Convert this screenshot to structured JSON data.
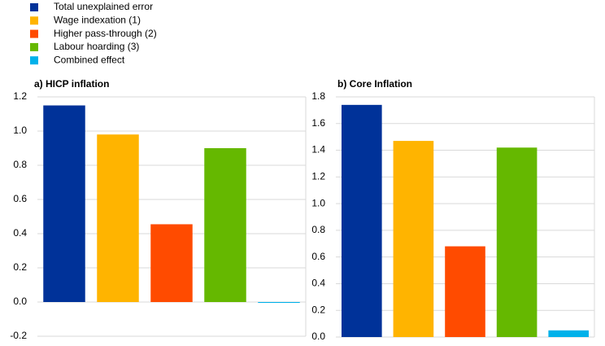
{
  "legend": [
    {
      "name": "Total unexplained error",
      "color": "#003299"
    },
    {
      "name": "Wage indexation (1)",
      "color": "#ffb400"
    },
    {
      "name": "Higher pass-through (2)",
      "color": "#ff4b00"
    },
    {
      "name": "Labour hoarding (3)",
      "color": "#65b800"
    },
    {
      "name": "Combined effect",
      "color": "#00b1ea"
    }
  ],
  "chart_data": [
    {
      "type": "bar",
      "title": "a) HICP inflation",
      "categories": [
        null,
        null,
        null,
        null,
        null
      ],
      "values": [
        1.15,
        0.98,
        0.455,
        0.9,
        -0.005
      ],
      "ylim": [
        -0.2,
        1.2
      ],
      "yticks": [
        -0.2,
        {
          "value": 0,
          "label": "0.0"
        },
        0.2,
        0.4,
        0.6,
        0.8,
        {
          "value": 1,
          "label": "1.0"
        },
        1.2
      ],
      "grid": true
    },
    {
      "type": "bar",
      "title": "b) Core Inflation",
      "categories": [
        null,
        null,
        null,
        null,
        null
      ],
      "values": [
        1.74,
        1.47,
        0.68,
        1.42,
        0.05
      ],
      "ylim": [
        0,
        1.8
      ],
      "yticks": [
        {
          "value": 0,
          "label": "0.0"
        },
        0.2,
        0.4,
        0.6,
        0.8,
        {
          "value": 1,
          "label": "1.0"
        },
        1.2,
        1.4,
        1.6,
        1.8
      ],
      "grid": true
    }
  ]
}
